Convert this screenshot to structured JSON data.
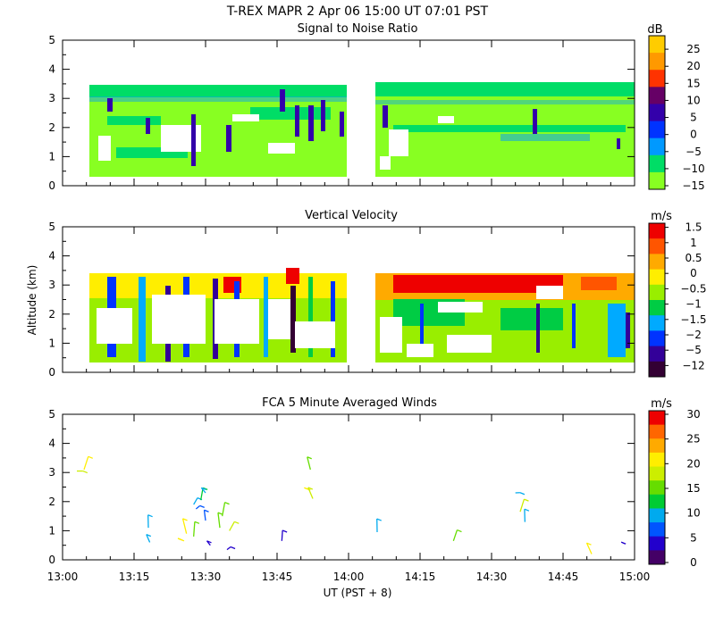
{
  "figure": {
    "title": "T-REX  MAPR  2 Apr 06  15:00 UT  07:01  PST",
    "x_axis_label": "UT  (PST + 8)",
    "y_axis_label": "Altitude (km)"
  },
  "chart_data": [
    {
      "type": "heatmap",
      "title": "Signal to Noise Ratio",
      "xlabel": "UT  (PST + 8)",
      "ylabel": "Altitude (km)",
      "x_ticks": [
        "13:00",
        "13:15",
        "13:30",
        "13:45",
        "14:00",
        "14:15",
        "14:30",
        "14:45",
        "15:00"
      ],
      "xlim": [
        "13:00",
        "15:00"
      ],
      "ylim": [
        0,
        5
      ],
      "y_ticks": [
        "0",
        "1",
        "2",
        "3",
        "4",
        "5"
      ],
      "data_gap": [
        "13:59",
        "14:06"
      ],
      "approx_data_extent_km": [
        0.3,
        3.4
      ],
      "colorbar": {
        "unit": "dB",
        "labels": [
          "25",
          "20",
          "15",
          "10",
          "5",
          "0",
          "−5",
          "−10",
          "−15"
        ],
        "colors": [
          "#ffcc00",
          "#ff9900",
          "#ff3300",
          "#660066",
          "#3300aa",
          "#0033ff",
          "#0099ff",
          "#00dd66",
          "#88ff22"
        ]
      }
    },
    {
      "type": "heatmap",
      "title": "Vertical Velocity",
      "xlabel": "UT  (PST + 8)",
      "ylabel": "Altitude (km)",
      "x_ticks": [
        "13:00",
        "13:15",
        "13:30",
        "13:45",
        "14:00",
        "14:15",
        "14:30",
        "14:45",
        "15:00"
      ],
      "xlim": [
        "13:00",
        "15:00"
      ],
      "ylim": [
        0,
        5
      ],
      "y_ticks": [
        "0",
        "1",
        "2",
        "3",
        "4",
        "5"
      ],
      "data_gap": [
        "13:59",
        "14:06"
      ],
      "approx_data_extent_km": [
        0.3,
        3.4
      ],
      "colorbar": {
        "unit": "m/s",
        "labels": [
          "1.5",
          "1",
          "0.5",
          "0",
          "−0.5",
          "−1",
          "−1.5",
          "−2",
          "−5",
          "−12"
        ],
        "colors": [
          "#ee0000",
          "#ff5500",
          "#ffaa00",
          "#ffee00",
          "#99ee00",
          "#00cc44",
          "#00aaff",
          "#0033ff",
          "#330099",
          "#330033"
        ]
      }
    },
    {
      "type": "scatter",
      "title": "FCA 5 Minute Averaged Winds",
      "xlabel": "UT  (PST + 8)",
      "ylabel": "Altitude (km)",
      "x_ticks": [
        "13:00",
        "13:15",
        "13:30",
        "13:45",
        "14:00",
        "14:15",
        "14:30",
        "14:45",
        "15:00"
      ],
      "xlim": [
        "13:00",
        "15:00"
      ],
      "ylim": [
        0,
        5
      ],
      "y_ticks": [
        "0",
        "1",
        "2",
        "3",
        "4",
        "5"
      ],
      "colorbar": {
        "unit": "m/s",
        "labels": [
          "30",
          "25",
          "20",
          "15",
          "10",
          "5",
          "0"
        ],
        "colors": [
          "#ee0000",
          "#ff6600",
          "#ffaa00",
          "#ffee00",
          "#ccee00",
          "#66dd00",
          "#00cc33",
          "#00aaee",
          "#0055ff",
          "#2200cc",
          "#440066"
        ]
      },
      "barbs": [
        {
          "t": 3,
          "alt": 3.05,
          "speed": 19
        },
        {
          "t": 4.5,
          "alt": 3.1,
          "speed": 20
        },
        {
          "t": 18,
          "alt": 1.1,
          "speed": 9
        },
        {
          "t": 18.3,
          "alt": 0.6,
          "speed": 8
        },
        {
          "t": 25.5,
          "alt": 0.65,
          "speed": 20
        },
        {
          "t": 26,
          "alt": 0.9,
          "speed": 21
        },
        {
          "t": 27.5,
          "alt": 0.8,
          "speed": 14
        },
        {
          "t": 27.5,
          "alt": 1.9,
          "speed": 9
        },
        {
          "t": 28,
          "alt": 1.75,
          "speed": 6
        },
        {
          "t": 29,
          "alt": 2.05,
          "speed": 11
        },
        {
          "t": 30,
          "alt": 1.35,
          "speed": 5
        },
        {
          "t": 30,
          "alt": 2.3,
          "speed": 9
        },
        {
          "t": 31,
          "alt": 0.5,
          "speed": 4
        },
        {
          "t": 33,
          "alt": 1.1,
          "speed": 16
        },
        {
          "t": 33.5,
          "alt": 1.5,
          "speed": 15
        },
        {
          "t": 34.5,
          "alt": 0.35,
          "speed": 4
        },
        {
          "t": 35,
          "alt": 1.0,
          "speed": 18
        },
        {
          "t": 46,
          "alt": 0.65,
          "speed": 4
        },
        {
          "t": 52,
          "alt": 3.1,
          "speed": 15
        },
        {
          "t": 52,
          "alt": 2.4,
          "speed": 20
        },
        {
          "t": 52.5,
          "alt": 2.1,
          "speed": 19
        },
        {
          "t": 66,
          "alt": 0.95,
          "speed": 10
        },
        {
          "t": 82,
          "alt": 0.65,
          "speed": 14
        },
        {
          "t": 95,
          "alt": 2.3,
          "speed": 10
        },
        {
          "t": 96,
          "alt": 1.65,
          "speed": 18
        },
        {
          "t": 97,
          "alt": 1.3,
          "speed": 9
        },
        {
          "t": 111,
          "alt": 0.2,
          "speed": 20
        },
        {
          "t": 118,
          "alt": 0.55,
          "speed": 4
        }
      ]
    }
  ]
}
